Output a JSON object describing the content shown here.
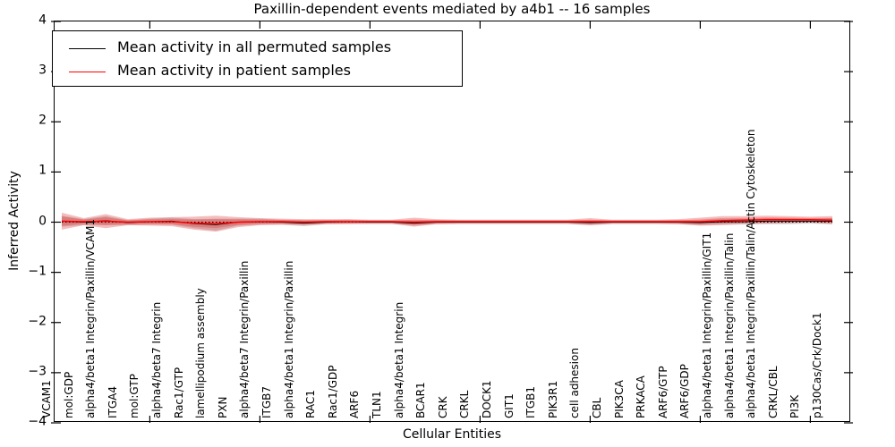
{
  "title": "Paxillin-dependent events mediated by a4b1 -- 16 samples",
  "legend": {
    "items": [
      {
        "label": "Mean activity in all permuted samples",
        "color": "#000000"
      },
      {
        "label": "Mean activity in patient samples",
        "color": "#ff0000"
      }
    ]
  },
  "chart_data": {
    "type": "line",
    "title": "Paxillin-dependent events mediated by a4b1 -- 16 samples",
    "xlabel": "Cellular Entities",
    "ylabel": "Inferred Activity",
    "ylim": [
      -4,
      4
    ],
    "grid": false,
    "legend_position": "upper left",
    "yticks": [
      {
        "value": 4,
        "label": "4"
      },
      {
        "value": 3,
        "label": "3"
      },
      {
        "value": 2,
        "label": "2"
      },
      {
        "value": 1,
        "label": "1"
      },
      {
        "value": 0,
        "label": "0"
      },
      {
        "value": -1,
        "label": "−1"
      },
      {
        "value": -2,
        "label": "−2"
      },
      {
        "value": -3,
        "label": "−3"
      },
      {
        "value": -4,
        "label": "−4"
      }
    ],
    "categories": [
      "VCAM1",
      "mol:GDP",
      "alpha4/beta1 Integrin/Paxillin/VCAM1",
      "ITGA4",
      "mol:GTP",
      "alpha4/beta7 Integrin",
      "Rac1/GTP",
      "lamellipodium assembly",
      "PXN",
      "alpha4/beta7 Integrin/Paxillin",
      "ITGB7",
      "alpha4/beta1 Integrin/Paxillin",
      "RAC1",
      "Rac1/GDP",
      "ARF6",
      "TLN1",
      "alpha4/beta1 Integrin",
      "BCAR1",
      "CRK",
      "CRKL",
      "DOCK1",
      "GIT1",
      "ITGB1",
      "PIK3R1",
      "cell adhesion",
      "CBL",
      "PIK3CA",
      "PRKACA",
      "ARF6/GTP",
      "ARF6/GDP",
      "alpha4/beta1 Integrin/Paxillin/GIT1",
      "alpha4/beta1 Integrin/Paxillin/Talin",
      "alpha4/beta1 Integrin/Paxillin/Talin/Actin Cytoskeleton",
      "CRKL/CBL",
      "PI3K",
      "p130Cas/Crk/Dock1"
    ],
    "series": [
      {
        "name": "Mean activity in all permuted samples",
        "color": "#000000",
        "style": "solid",
        "values": [
          0.02,
          0.0,
          0.03,
          -0.01,
          0.01,
          0.02,
          -0.03,
          -0.05,
          0.0,
          0.01,
          0.0,
          -0.02,
          0.0,
          0.01,
          0.0,
          0.0,
          -0.02,
          0.0,
          0.0,
          0.0,
          0.0,
          0.0,
          0.0,
          0.0,
          -0.01,
          0.0,
          0.0,
          0.0,
          0.0,
          -0.01,
          0.01,
          0.01,
          0.02,
          0.02,
          0.02,
          0.02
        ]
      },
      {
        "name": "Mean activity in patient samples",
        "color": "#ff0000",
        "style": "solid",
        "values": [
          0.02,
          0.01,
          0.02,
          0.0,
          0.01,
          0.01,
          -0.02,
          -0.03,
          0.0,
          0.01,
          0.01,
          0.0,
          0.01,
          0.01,
          0.01,
          0.01,
          0.0,
          0.01,
          0.01,
          0.01,
          0.01,
          0.01,
          0.01,
          0.01,
          0.01,
          0.01,
          0.01,
          0.01,
          0.01,
          0.01,
          0.03,
          0.04,
          0.05,
          0.05,
          0.05,
          0.04
        ]
      }
    ],
    "bands": [
      {
        "name": "permuted-sample-range",
        "color": "#999999",
        "opacity": 0.4,
        "center_series": 0,
        "halfwidths": [
          0.11,
          0.06,
          0.09,
          0.05,
          0.06,
          0.07,
          0.09,
          0.12,
          0.07,
          0.06,
          0.05,
          0.06,
          0.04,
          0.04,
          0.04,
          0.04,
          0.05,
          0.04,
          0.04,
          0.04,
          0.04,
          0.04,
          0.04,
          0.04,
          0.05,
          0.04,
          0.04,
          0.04,
          0.04,
          0.05,
          0.05,
          0.05,
          0.06,
          0.06,
          0.05,
          0.06
        ]
      },
      {
        "name": "patient-sample-range",
        "color": "#dd3333",
        "opacity": 0.32,
        "center_series": 1,
        "halfwidths": [
          0.17,
          0.07,
          0.14,
          0.06,
          0.08,
          0.09,
          0.13,
          0.16,
          0.1,
          0.07,
          0.06,
          0.06,
          0.05,
          0.05,
          0.04,
          0.04,
          0.09,
          0.05,
          0.04,
          0.04,
          0.04,
          0.04,
          0.04,
          0.04,
          0.07,
          0.04,
          0.04,
          0.04,
          0.05,
          0.08,
          0.09,
          0.08,
          0.08,
          0.07,
          0.06,
          0.08
        ]
      }
    ],
    "zero_line": {
      "value": 0,
      "color": "#000000",
      "style": "dashed"
    }
  }
}
